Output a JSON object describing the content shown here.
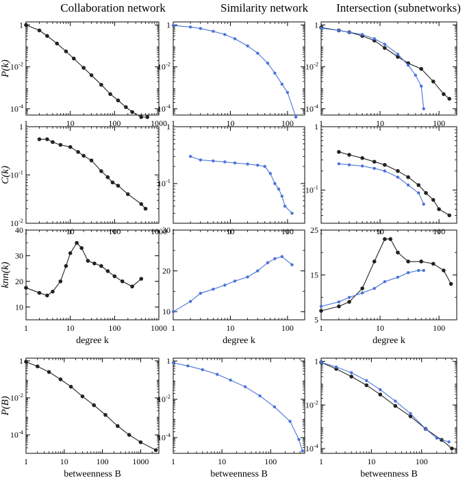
{
  "columns": [
    "Collaboration network",
    "Similarity network",
    "Intersection (subnetworks)"
  ],
  "row_labels": [
    "P(k)",
    "C(k)",
    "knn(k)",
    "P(B)"
  ],
  "x_labels": {
    "degree": "degree k",
    "betweenness": "betweenness B"
  },
  "colors": {
    "collab": "#222222",
    "similarity": "#4a72d8",
    "frame": "#000000"
  },
  "chart_data": [
    {
      "id": "p-k-collab",
      "type": "line",
      "yscale": "log",
      "xlim": [
        1,
        1000
      ],
      "ylim": [
        5e-05,
        1.4
      ],
      "xticks": [
        1,
        10,
        100,
        1000
      ],
      "xticklabels": [
        "1",
        "10",
        "100",
        "1000"
      ],
      "yticks": [
        1,
        0.01,
        0.0001
      ],
      "yticklabels": [
        "1",
        "10^-2",
        "10^-4"
      ],
      "ylabel": "P(k)",
      "xlabel": "",
      "series": [
        {
          "name": "collaboration",
          "color": "collab",
          "x": [
            1,
            2,
            3,
            5,
            8,
            12,
            20,
            30,
            50,
            80,
            120,
            180,
            250,
            400,
            550
          ],
          "y": [
            1,
            0.55,
            0.3,
            0.13,
            0.055,
            0.025,
            0.009,
            0.004,
            0.0014,
            0.0005,
            0.00025,
            0.00012,
            7e-05,
            4e-05,
            4e-05
          ]
        }
      ]
    },
    {
      "id": "p-k-sim",
      "type": "line",
      "yscale": "log",
      "xlim": [
        1,
        200
      ],
      "ylim": [
        5e-05,
        1.4
      ],
      "xticks": [
        1,
        10,
        100
      ],
      "xticklabels": [
        "1",
        "10",
        "100"
      ],
      "yticks": [
        1,
        0.01,
        0.0001
      ],
      "yticklabels": [
        "1",
        "10^-2",
        "10^-4"
      ],
      "ylabel": "",
      "xlabel": "",
      "series": [
        {
          "name": "similarity",
          "color": "similarity",
          "x": [
            1,
            2,
            3,
            5,
            8,
            12,
            20,
            30,
            45,
            60,
            80,
            100,
            140
          ],
          "y": [
            0.95,
            0.8,
            0.68,
            0.5,
            0.35,
            0.22,
            0.1,
            0.045,
            0.015,
            0.005,
            0.0015,
            0.0006,
            4e-05
          ]
        }
      ]
    },
    {
      "id": "p-k-inter",
      "type": "line",
      "yscale": "log",
      "xlim": [
        1,
        200
      ],
      "ylim": [
        5e-05,
        1.4
      ],
      "xticks": [
        1,
        10,
        100
      ],
      "xticklabels": [
        "1",
        "10",
        "100"
      ],
      "yticks": [
        1,
        0.01,
        0.0001
      ],
      "yticklabels": [
        "1",
        "10^-2",
        "10^-4"
      ],
      "ylabel": "",
      "xlabel": "",
      "series": [
        {
          "name": "collaboration",
          "color": "collab",
          "x": [
            1,
            2,
            3,
            5,
            8,
            12,
            20,
            30,
            50,
            80,
            120,
            150
          ],
          "y": [
            0.75,
            0.55,
            0.45,
            0.3,
            0.18,
            0.08,
            0.03,
            0.015,
            0.008,
            0.002,
            0.0005,
            0.0003
          ]
        },
        {
          "name": "similarity",
          "color": "similarity",
          "x": [
            1,
            2,
            3,
            5,
            8,
            12,
            20,
            30,
            40,
            50,
            55
          ],
          "y": [
            0.7,
            0.55,
            0.45,
            0.35,
            0.22,
            0.12,
            0.04,
            0.012,
            0.004,
            0.0012,
            0.0001
          ]
        }
      ]
    },
    {
      "id": "c-k-collab",
      "type": "line",
      "yscale": "log",
      "xlim": [
        1,
        1000
      ],
      "ylim": [
        0.01,
        1
      ],
      "xticks": [
        1,
        10,
        100,
        1000
      ],
      "xticklabels": [
        "1",
        "10",
        "100",
        "1000"
      ],
      "yticks": [
        1,
        0.1,
        0.01
      ],
      "yticklabels": [
        "1",
        "10^-1",
        "10^-2"
      ],
      "ylabel": "C(k)",
      "xlabel": "",
      "series": [
        {
          "name": "collaboration",
          "color": "collab",
          "x": [
            2,
            3,
            4,
            6,
            10,
            15,
            20,
            30,
            50,
            70,
            90,
            120,
            200,
            400,
            500
          ],
          "y": [
            0.55,
            0.55,
            0.48,
            0.42,
            0.38,
            0.3,
            0.25,
            0.2,
            0.12,
            0.09,
            0.07,
            0.06,
            0.04,
            0.025,
            0.02
          ]
        }
      ]
    },
    {
      "id": "c-k-sim",
      "type": "line",
      "yscale": "log",
      "xlim": [
        1,
        200
      ],
      "ylim": [
        0.02,
        1
      ],
      "xticks": [
        1,
        10,
        100
      ],
      "xticklabels": [
        "1",
        "10",
        "100"
      ],
      "yticks": [
        1,
        0.1
      ],
      "yticklabels": [
        "1",
        "10^-1"
      ],
      "ylabel": "",
      "xlabel": "",
      "series": [
        {
          "name": "similarity",
          "color": "similarity",
          "x": [
            2,
            3,
            5,
            8,
            12,
            20,
            30,
            40,
            50,
            60,
            70,
            80,
            90,
            120
          ],
          "y": [
            0.3,
            0.26,
            0.25,
            0.24,
            0.23,
            0.22,
            0.21,
            0.2,
            0.15,
            0.1,
            0.08,
            0.06,
            0.04,
            0.03
          ]
        }
      ]
    },
    {
      "id": "c-k-inter",
      "type": "line",
      "yscale": "log",
      "xlim": [
        1,
        200
      ],
      "ylim": [
        0.03,
        1
      ],
      "xticks": [
        1,
        10,
        100
      ],
      "xticklabels": [
        "1",
        "10",
        "100"
      ],
      "yticks": [
        1,
        0.1
      ],
      "yticklabels": [
        "1",
        "10^-1"
      ],
      "ylabel": "",
      "xlabel": "",
      "series": [
        {
          "name": "collaboration",
          "color": "collab",
          "x": [
            2,
            3,
            5,
            8,
            12,
            20,
            30,
            45,
            60,
            80,
            100,
            150
          ],
          "y": [
            0.4,
            0.36,
            0.32,
            0.28,
            0.25,
            0.2,
            0.16,
            0.12,
            0.09,
            0.07,
            0.05,
            0.04
          ]
        },
        {
          "name": "similarity",
          "color": "similarity",
          "x": [
            2,
            3,
            5,
            8,
            12,
            20,
            30,
            45,
            55
          ],
          "y": [
            0.26,
            0.25,
            0.24,
            0.22,
            0.2,
            0.16,
            0.12,
            0.09,
            0.06
          ]
        }
      ]
    },
    {
      "id": "knn-collab",
      "type": "line",
      "yscale": "linear",
      "xlim": [
        1,
        1000
      ],
      "ylim": [
        5,
        40
      ],
      "xticks": [
        1,
        10,
        100,
        1000
      ],
      "xticklabels": [
        "1",
        "10",
        "100",
        "1000"
      ],
      "yticks": [
        10,
        20,
        30,
        40
      ],
      "yticklabels": [
        "10",
        "20",
        "30",
        "40"
      ],
      "ylabel": "knn(k)",
      "xlabel": "degree k",
      "series": [
        {
          "name": "collaboration",
          "color": "collab",
          "x": [
            1,
            2,
            3,
            4,
            6,
            8,
            10,
            14,
            18,
            25,
            35,
            50,
            70,
            100,
            150,
            250,
            400
          ],
          "y": [
            17.5,
            15.5,
            14.5,
            16,
            20,
            26,
            31,
            35,
            33,
            28,
            27,
            26,
            24,
            22,
            20,
            18,
            21
          ]
        }
      ]
    },
    {
      "id": "knn-sim",
      "type": "line",
      "yscale": "linear",
      "xlim": [
        1,
        200
      ],
      "ylim": [
        8,
        30
      ],
      "xticks": [
        1,
        10,
        100
      ],
      "xticklabels": [
        "1",
        "10",
        "100"
      ],
      "yticks": [
        10,
        20,
        30
      ],
      "yticklabels": [
        "10",
        "20",
        "30"
      ],
      "ylabel": "",
      "xlabel": "degree k",
      "series": [
        {
          "name": "similarity",
          "color": "similarity",
          "x": [
            1,
            2,
            3,
            5,
            8,
            12,
            20,
            30,
            45,
            60,
            80,
            120
          ],
          "y": [
            10,
            12.5,
            14.5,
            15.5,
            16.5,
            17.5,
            18.5,
            20,
            22,
            23,
            23.5,
            21.5
          ]
        }
      ]
    },
    {
      "id": "knn-inter",
      "type": "line",
      "yscale": "linear",
      "xlim": [
        1,
        200
      ],
      "ylim": [
        5,
        25
      ],
      "xticks": [
        1,
        10,
        100
      ],
      "xticklabels": [
        "1",
        "10",
        "100"
      ],
      "yticks": [
        5,
        15,
        25
      ],
      "yticklabels": [
        "5",
        "15",
        "25"
      ],
      "ylabel": "",
      "xlabel": "degree k",
      "series": [
        {
          "name": "collaboration",
          "color": "collab",
          "x": [
            1,
            2,
            3,
            5,
            8,
            12,
            15,
            20,
            30,
            50,
            80,
            120,
            160
          ],
          "y": [
            7,
            8,
            9,
            12,
            18,
            23,
            23,
            20,
            18,
            18,
            17.5,
            16,
            13
          ]
        },
        {
          "name": "similarity",
          "color": "similarity",
          "x": [
            1,
            2,
            3,
            5,
            8,
            12,
            20,
            30,
            45,
            55
          ],
          "y": [
            8,
            9,
            10,
            11,
            12,
            13.5,
            14.5,
            15.5,
            16,
            16
          ]
        }
      ]
    },
    {
      "id": "p-b-collab",
      "type": "line",
      "yscale": "log",
      "xlim": [
        1,
        3000
      ],
      "ylim": [
        1e-05,
        1.4
      ],
      "xticks": [
        1,
        10,
        100,
        1000
      ],
      "xticklabels": [
        "1",
        "10",
        "100",
        "1000"
      ],
      "yticks": [
        1,
        0.01,
        0.0001
      ],
      "yticklabels": [
        "1",
        "10^-2",
        "10^-4"
      ],
      "ylabel": "P(B)",
      "xlabel": "betweenness B",
      "series": [
        {
          "name": "collaboration",
          "color": "collab",
          "x": [
            1,
            2,
            4,
            8,
            15,
            30,
            60,
            120,
            250,
            500,
            1000,
            2500
          ],
          "y": [
            0.9,
            0.5,
            0.25,
            0.1,
            0.04,
            0.012,
            0.004,
            0.0012,
            0.0003,
            0.0001,
            4e-05,
            1.5e-05
          ]
        }
      ]
    },
    {
      "id": "p-b-sim",
      "type": "line",
      "yscale": "log",
      "xlim": [
        1,
        500
      ],
      "ylim": [
        1.5e-05,
        1.4
      ],
      "xticks": [
        1,
        10,
        100
      ],
      "xticklabels": [
        "1",
        "10",
        "100"
      ],
      "yticks": [
        1,
        0.01,
        0.0001
      ],
      "yticklabels": [
        "1",
        "10^-2",
        "10^-4"
      ],
      "ylabel": "",
      "xlabel": "betweenness B",
      "series": [
        {
          "name": "similarity",
          "color": "similarity",
          "x": [
            1,
            2,
            4,
            8,
            15,
            30,
            60,
            120,
            250,
            380,
            450
          ],
          "y": [
            0.8,
            0.55,
            0.35,
            0.2,
            0.1,
            0.045,
            0.015,
            0.004,
            0.0007,
            8e-05,
            2e-05
          ]
        }
      ]
    },
    {
      "id": "p-b-inter",
      "type": "line",
      "yscale": "log",
      "xlim": [
        1,
        500
      ],
      "ylim": [
        6e-05,
        1.4
      ],
      "xticks": [
        1,
        10,
        100
      ],
      "xticklabels": [
        "1",
        "10",
        "100"
      ],
      "yticks": [
        1,
        0.01,
        0.0001
      ],
      "yticklabels": [
        "1",
        "10^-2",
        "10^-4"
      ],
      "ylabel": "",
      "xlabel": "betweenness B",
      "series": [
        {
          "name": "collaboration",
          "color": "collab",
          "x": [
            1,
            2,
            4,
            8,
            15,
            30,
            60,
            120,
            250,
            400
          ],
          "y": [
            0.9,
            0.45,
            0.2,
            0.08,
            0.03,
            0.009,
            0.003,
            0.0008,
            0.00025,
            0.0001
          ]
        },
        {
          "name": "similarity",
          "color": "similarity",
          "x": [
            1,
            2,
            4,
            8,
            15,
            30,
            60,
            120,
            200,
            350
          ],
          "y": [
            0.9,
            0.55,
            0.3,
            0.13,
            0.05,
            0.015,
            0.004,
            0.0008,
            0.0003,
            0.0002
          ]
        }
      ]
    }
  ]
}
